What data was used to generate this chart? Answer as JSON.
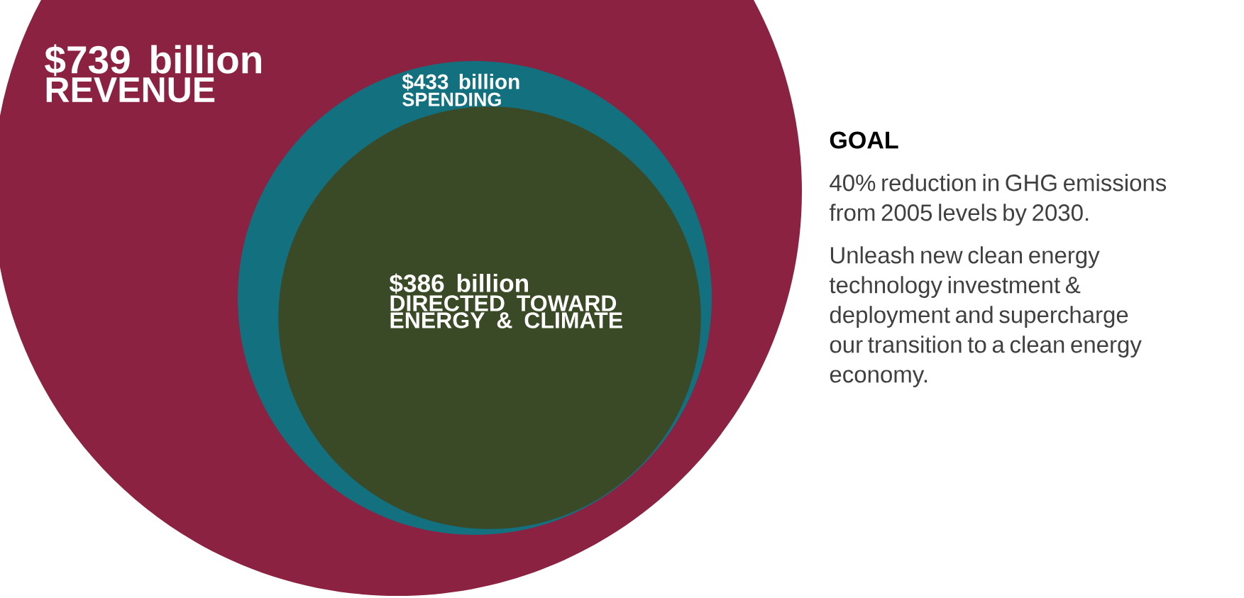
{
  "chart_data": {
    "type": "other",
    "categories": [
      "REVENUE",
      "SPENDING",
      "DIRECTED TOWARD ENERGY & CLIMATE"
    ],
    "values": [
      739,
      433,
      386
    ],
    "value_labels": [
      "$739 billion",
      "$433 billion",
      "$386 billion"
    ],
    "colors": [
      "#8b2242",
      "#13707f",
      "#3a4a26"
    ],
    "annotations": [
      "GOAL",
      "40% reduction in GHG emissions from 2005 levels by 2030.",
      "Unleash new clean energy technology investment & deployment and supercharge our transition to a clean energy economy."
    ]
  }
}
